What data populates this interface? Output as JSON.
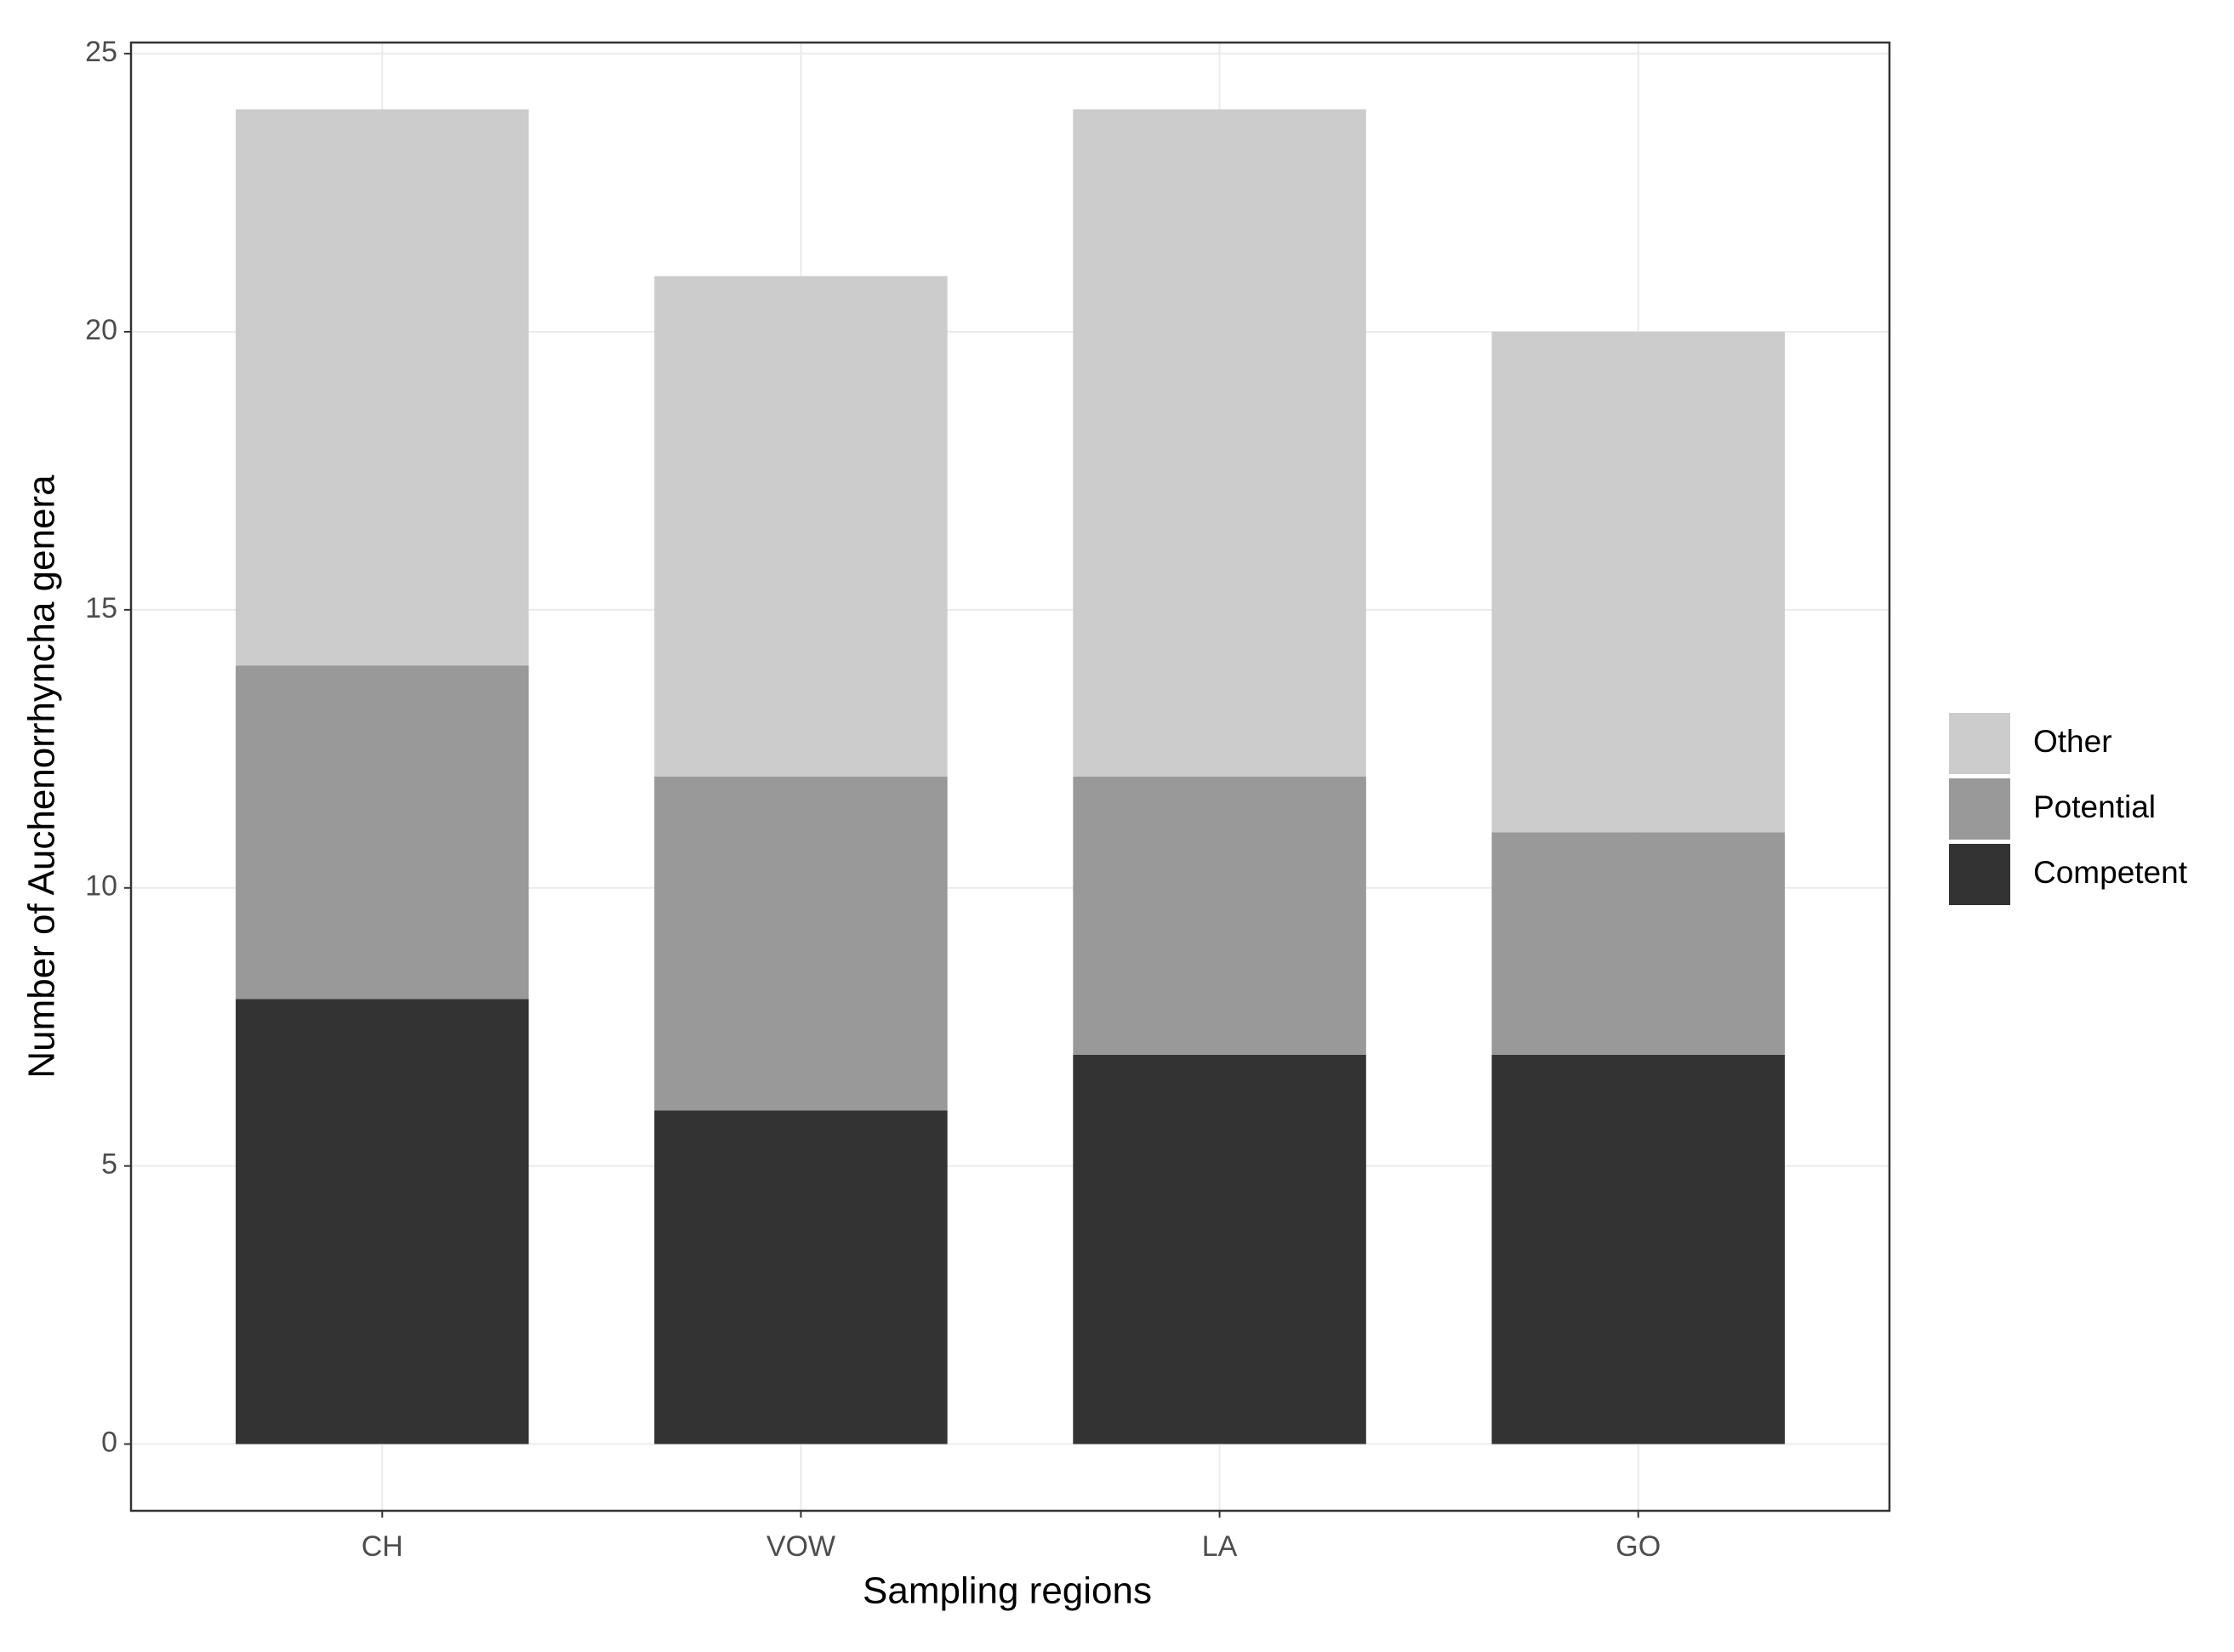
{
  "chart_data": {
    "type": "stacked_bar",
    "x_label": "Sampling regions",
    "y_label": "Number of Auchenorrhyncha genera",
    "categories": [
      "CH",
      "VOW",
      "LA",
      "GO"
    ],
    "series": [
      {
        "name": "Competent",
        "color": "#333333",
        "values": [
          8,
          6,
          7,
          7
        ]
      },
      {
        "name": "Potential",
        "color": "#999999",
        "values": [
          6,
          6,
          5,
          4
        ]
      },
      {
        "name": "Other",
        "color": "#cccccc",
        "values": [
          10,
          9,
          12,
          9
        ]
      }
    ],
    "ylim": [
      -1.2,
      25.2
    ],
    "yticks": [
      0,
      5,
      10,
      15,
      20,
      25
    ],
    "grid": true
  }
}
